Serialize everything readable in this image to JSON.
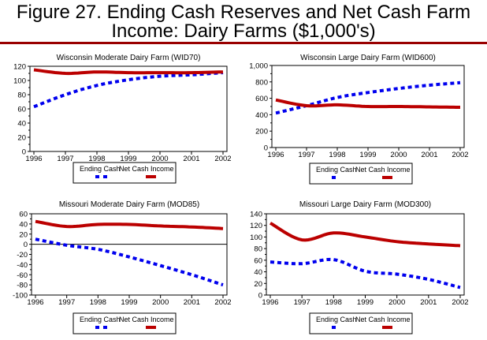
{
  "figure": {
    "title_line1": "Figure 27. Ending Cash Reserves and Net Cash Farm",
    "title_line2": "Income:  Dairy Farms ($1,000's)",
    "rule_color": "#990000"
  },
  "colors": {
    "ending_cash": "#0000ee",
    "net_cash_income": "#bb0000"
  },
  "chart_data": [
    {
      "type": "line",
      "title": "Wisconsin Moderate Dairy Farm (WID70)",
      "x": [
        "1996",
        "1997",
        "1998",
        "1999",
        "2000",
        "2001",
        "2002"
      ],
      "yticks": [
        "0",
        "20",
        "40",
        "60",
        "80",
        "100",
        "120"
      ],
      "ylim": [
        0,
        120
      ],
      "xlabel": "",
      "ylabel": "",
      "zero_line": false,
      "legend": {
        "placement": "bottom",
        "labels": [
          "Ending Cash",
          "Net Cash Income"
        ]
      },
      "series": [
        {
          "name": "Ending Cash",
          "style": "dashed",
          "values": [
            63,
            80,
            93,
            101,
            106,
            108,
            111
          ]
        },
        {
          "name": "Net Cash Income",
          "style": "solid",
          "values": [
            115,
            110,
            112,
            111,
            111,
            111,
            112
          ]
        }
      ]
    },
    {
      "type": "line",
      "title": "Wisconsin Large Dairy Farm (WID600)",
      "x": [
        "1996",
        "1997",
        "1998",
        "1999",
        "2000",
        "2001",
        "2002"
      ],
      "yticks": [
        "0",
        "200",
        "400",
        "600",
        "800",
        "1,000"
      ],
      "ylim": [
        0,
        1000
      ],
      "xlabel": "",
      "ylabel": "",
      "zero_line": false,
      "legend": {
        "placement": "bottom",
        "labels": [
          "Ending Cash",
          "Net Cash Income"
        ]
      },
      "series": [
        {
          "name": "Ending Cash",
          "style": "dashed",
          "values": [
            420,
            510,
            610,
            670,
            720,
            760,
            790
          ]
        },
        {
          "name": "Net Cash Income",
          "style": "solid",
          "values": [
            580,
            510,
            520,
            500,
            500,
            495,
            490
          ]
        }
      ]
    },
    {
      "type": "line",
      "title": "Missouri Moderate Dairy Farm (MOD85)",
      "x": [
        "1996",
        "1997",
        "1998",
        "1999",
        "2000",
        "2001",
        "2002"
      ],
      "yticks": [
        "-100",
        "-80",
        "-60",
        "-40",
        "-20",
        "0",
        "20",
        "40",
        "60"
      ],
      "ylim": [
        -100,
        60
      ],
      "xlabel": "",
      "ylabel": "",
      "zero_line": true,
      "legend": {
        "placement": "bottom",
        "labels": [
          "Ending Cash",
          "Net Cash Income"
        ]
      },
      "series": [
        {
          "name": "Ending Cash",
          "style": "dashed",
          "values": [
            10,
            -2,
            -10,
            -25,
            -42,
            -60,
            -80
          ]
        },
        {
          "name": "Net Cash Income",
          "style": "solid",
          "values": [
            45,
            35,
            39,
            39,
            36,
            34,
            31
          ]
        }
      ]
    },
    {
      "type": "line",
      "title": "Missouri Large Dairy Farm (MOD300)",
      "x": [
        "1996",
        "1997",
        "1998",
        "1999",
        "2000",
        "2001",
        "2002"
      ],
      "yticks": [
        "0",
        "20",
        "40",
        "60",
        "80",
        "100",
        "120",
        "140"
      ],
      "ylim": [
        0,
        140
      ],
      "xlabel": "",
      "ylabel": "",
      "zero_line": false,
      "legend": {
        "placement": "bottom",
        "labels": [
          "Ending Cash",
          "Net Cash Income"
        ]
      },
      "series": [
        {
          "name": "Ending Cash",
          "style": "dashed",
          "values": [
            57,
            54,
            61,
            41,
            36,
            27,
            13
          ]
        },
        {
          "name": "Net Cash Income",
          "style": "solid",
          "values": [
            124,
            95,
            107,
            100,
            92,
            88,
            85
          ]
        }
      ]
    }
  ]
}
